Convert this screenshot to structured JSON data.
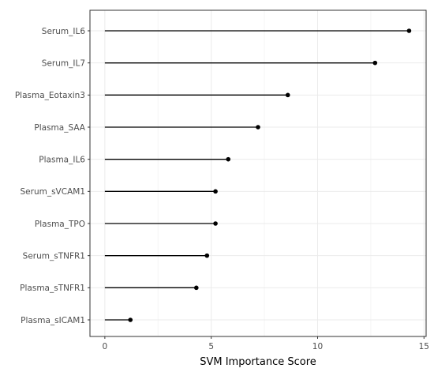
{
  "chart_data": {
    "type": "lollipop",
    "categories": [
      "Serum_IL6",
      "Serum_IL7",
      "Plasma_Eotaxin3",
      "Plasma_SAA",
      "Plasma_IL6",
      "Serum_sVCAM1",
      "Plasma_TPO",
      "Serum_sTNFR1",
      "Plasma_sTNFR1",
      "Plasma_sICAM1"
    ],
    "values": [
      14.3,
      12.7,
      8.6,
      7.2,
      5.8,
      5.2,
      5.2,
      4.8,
      4.3,
      1.2
    ],
    "xlabel": "SVM Importance Score",
    "ylabel": "",
    "xlim": [
      -0.7,
      15.1
    ],
    "xticks": [
      0,
      5,
      10,
      15
    ],
    "grid": true,
    "colors": {
      "segment": "#000000",
      "point": "#000000",
      "grid_major": "#ebebeb",
      "grid_minor": "#f5f5f5",
      "panel_border": "#333333"
    }
  }
}
